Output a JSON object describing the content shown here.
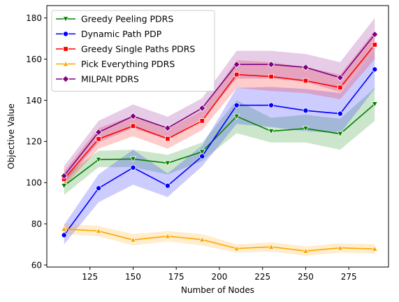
{
  "chart_data": {
    "type": "line",
    "title": "",
    "xlabel": "Number of Nodes",
    "ylabel": "Objective Value",
    "xlim": [
      100,
      298
    ],
    "ylim": [
      59,
      186
    ],
    "xticks": [
      125,
      150,
      175,
      200,
      225,
      250,
      275
    ],
    "yticks": [
      60,
      80,
      100,
      120,
      140,
      160,
      180
    ],
    "grid": false,
    "legend_position": "top-left",
    "x": [
      110,
      130,
      150,
      170,
      190,
      210,
      230,
      250,
      270,
      290
    ],
    "series": [
      {
        "name": "Greedy Peeling PDRS",
        "color": "#008000",
        "marker": "triangle-down",
        "values": [
          98.5,
          111.2,
          111.5,
          109.5,
          115,
          132.2,
          125,
          126.3,
          123.7,
          138.2
        ],
        "lower": [
          94,
          107.5,
          107.5,
          104,
          110.5,
          124,
          119.5,
          119.5,
          116,
          130
        ],
        "upper": [
          103,
          115.5,
          116,
          113.5,
          119.5,
          140,
          131.5,
          133,
          131,
          146
        ]
      },
      {
        "name": "Dynamic Path PDP",
        "color": "#0000ff",
        "marker": "circle",
        "values": [
          74.5,
          97.3,
          107.3,
          98.5,
          112.8,
          137.6,
          137.6,
          135,
          133.5,
          155
        ],
        "lower": [
          70,
          90.5,
          99,
          93,
          108,
          128.5,
          127,
          125,
          124,
          145.5
        ],
        "upper": [
          79.5,
          104,
          116,
          104.5,
          118,
          146,
          146.5,
          145.5,
          143.5,
          164.5
        ]
      },
      {
        "name": "Greedy Single Paths PDRS",
        "color": "#ff0000",
        "marker": "square",
        "values": [
          101.7,
          121.2,
          127.5,
          121.3,
          130,
          152.5,
          151.5,
          149.5,
          146.2,
          167
        ],
        "lower": [
          98,
          116.5,
          122.5,
          116.5,
          125.5,
          146,
          144.5,
          143.5,
          140.5,
          160
        ],
        "upper": [
          105.5,
          126.5,
          132.5,
          126,
          135,
          159.5,
          158.5,
          156,
          152.5,
          173.5
        ]
      },
      {
        "name": "Pick Everything PDRS",
        "color": "#ffa500",
        "marker": "triangle-up",
        "values": [
          77.5,
          76.5,
          72.2,
          74,
          72.3,
          68,
          68.8,
          66.8,
          68.3,
          67.8
        ],
        "lower": [
          75,
          74,
          69.5,
          71.5,
          69.5,
          66,
          66.5,
          64.5,
          66,
          65.5
        ],
        "upper": [
          80,
          79,
          75,
          76.5,
          75,
          70,
          71,
          69,
          70.5,
          70
        ]
      },
      {
        "name": "MILPAlt PDRS",
        "color": "#800080",
        "marker": "diamond",
        "values": [
          103.3,
          124.5,
          132.3,
          126.5,
          136.2,
          157.4,
          157.4,
          156,
          151,
          172
        ],
        "lower": [
          99.5,
          119.5,
          126.5,
          121,
          131,
          150.5,
          150.5,
          149,
          144,
          164.5
        ],
        "upper": [
          108,
          130,
          138,
          132,
          141,
          164,
          164,
          162.5,
          158.5,
          180
        ]
      }
    ]
  }
}
